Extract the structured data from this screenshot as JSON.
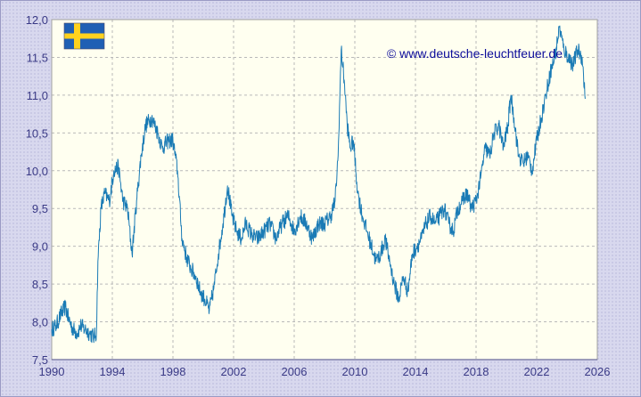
{
  "credit": "© www.deutsche-leuchtfeuer.de",
  "flag_icon": "sweden-flag-icon",
  "colors": {
    "line": "#1a7bb5",
    "plot_bg": "#fffff0",
    "grid": "#b9b9b9",
    "axis_text": "#3a3a86",
    "credit_text": "#0c0c9a",
    "flag_blue": "#1f5fb4",
    "flag_yellow": "#ffd21e"
  },
  "chart_data": {
    "type": "line",
    "title": "",
    "xlabel": "",
    "ylabel": "",
    "xlim": [
      1990,
      2026
    ],
    "ylim": [
      7.5,
      12.0
    ],
    "grid": true,
    "legend": "none",
    "x_ticks": [
      "1990",
      "1994",
      "1998",
      "2002",
      "2006",
      "2010",
      "2014",
      "2018",
      "2022",
      "2026"
    ],
    "y_ticks": [
      "7,5",
      "8,0",
      "8,5",
      "9,0",
      "9,5",
      "10,0",
      "10,5",
      "11,0",
      "11,5",
      "12,0"
    ],
    "series": [
      {
        "name": "",
        "x": [
          1990.0,
          1990.3,
          1990.6,
          1990.9,
          1991.1,
          1991.4,
          1991.7,
          1991.9,
          1992.2,
          1992.5,
          1992.8,
          1992.95,
          1993.05,
          1993.25,
          1993.5,
          1993.8,
          1994.1,
          1994.4,
          1994.7,
          1995.0,
          1995.3,
          1995.6,
          1995.9,
          1996.2,
          1996.6,
          1997.0,
          1997.3,
          1997.7,
          1998.0,
          1998.3,
          1998.6,
          1998.9,
          1999.2,
          1999.5,
          1999.8,
          2000.1,
          2000.4,
          2000.7,
          2001.0,
          2001.3,
          2001.6,
          2001.9,
          2002.2,
          2002.5,
          2002.8,
          2003.2,
          2003.6,
          2004.0,
          2004.4,
          2004.8,
          2005.2,
          2005.6,
          2006.0,
          2006.4,
          2006.8,
          2007.2,
          2007.6,
          2008.0,
          2008.4,
          2008.7,
          2008.9,
          2009.1,
          2009.3,
          2009.5,
          2009.7,
          2009.9,
          2010.2,
          2010.5,
          2010.8,
          2011.1,
          2011.4,
          2011.7,
          2012.0,
          2012.3,
          2012.6,
          2012.9,
          2013.2,
          2013.5,
          2013.8,
          2014.1,
          2014.4,
          2014.7,
          2015.0,
          2015.3,
          2015.6,
          2015.9,
          2016.2,
          2016.5,
          2016.8,
          2017.1,
          2017.4,
          2017.7,
          2018.0,
          2018.3,
          2018.6,
          2018.9,
          2019.2,
          2019.5,
          2019.8,
          2020.1,
          2020.3,
          2020.5,
          2020.8,
          2021.1,
          2021.4,
          2021.7,
          2022.0,
          2022.3,
          2022.6,
          2022.9,
          2023.2,
          2023.5,
          2023.8,
          2024.1,
          2024.4,
          2024.7,
          2025.0,
          2025.2
        ],
        "values": [
          7.9,
          7.95,
          8.1,
          8.2,
          8.05,
          7.9,
          7.85,
          7.95,
          7.9,
          7.85,
          7.8,
          7.85,
          8.8,
          9.5,
          9.7,
          9.6,
          10.0,
          10.05,
          9.6,
          9.5,
          8.9,
          9.6,
          10.2,
          10.6,
          10.7,
          10.5,
          10.3,
          10.4,
          10.4,
          10.0,
          9.1,
          8.85,
          8.7,
          8.6,
          8.4,
          8.3,
          8.15,
          8.45,
          8.9,
          9.3,
          9.8,
          9.4,
          9.2,
          9.1,
          9.3,
          9.15,
          9.1,
          9.2,
          9.3,
          9.1,
          9.3,
          9.4,
          9.2,
          9.4,
          9.3,
          9.1,
          9.3,
          9.3,
          9.4,
          9.6,
          10.2,
          11.6,
          11.2,
          10.6,
          10.3,
          10.4,
          9.7,
          9.4,
          9.2,
          9.0,
          8.8,
          8.9,
          9.1,
          8.8,
          8.5,
          8.3,
          8.6,
          8.4,
          8.9,
          9.0,
          9.1,
          9.3,
          9.4,
          9.3,
          9.4,
          9.5,
          9.3,
          9.2,
          9.5,
          9.6,
          9.7,
          9.5,
          9.6,
          9.9,
          10.3,
          10.2,
          10.5,
          10.6,
          10.3,
          10.6,
          11.0,
          10.7,
          10.2,
          10.1,
          10.2,
          10.0,
          10.4,
          10.7,
          11.0,
          11.3,
          11.5,
          11.9,
          11.6,
          11.5,
          11.4,
          11.6,
          11.5,
          10.95
        ]
      }
    ]
  }
}
